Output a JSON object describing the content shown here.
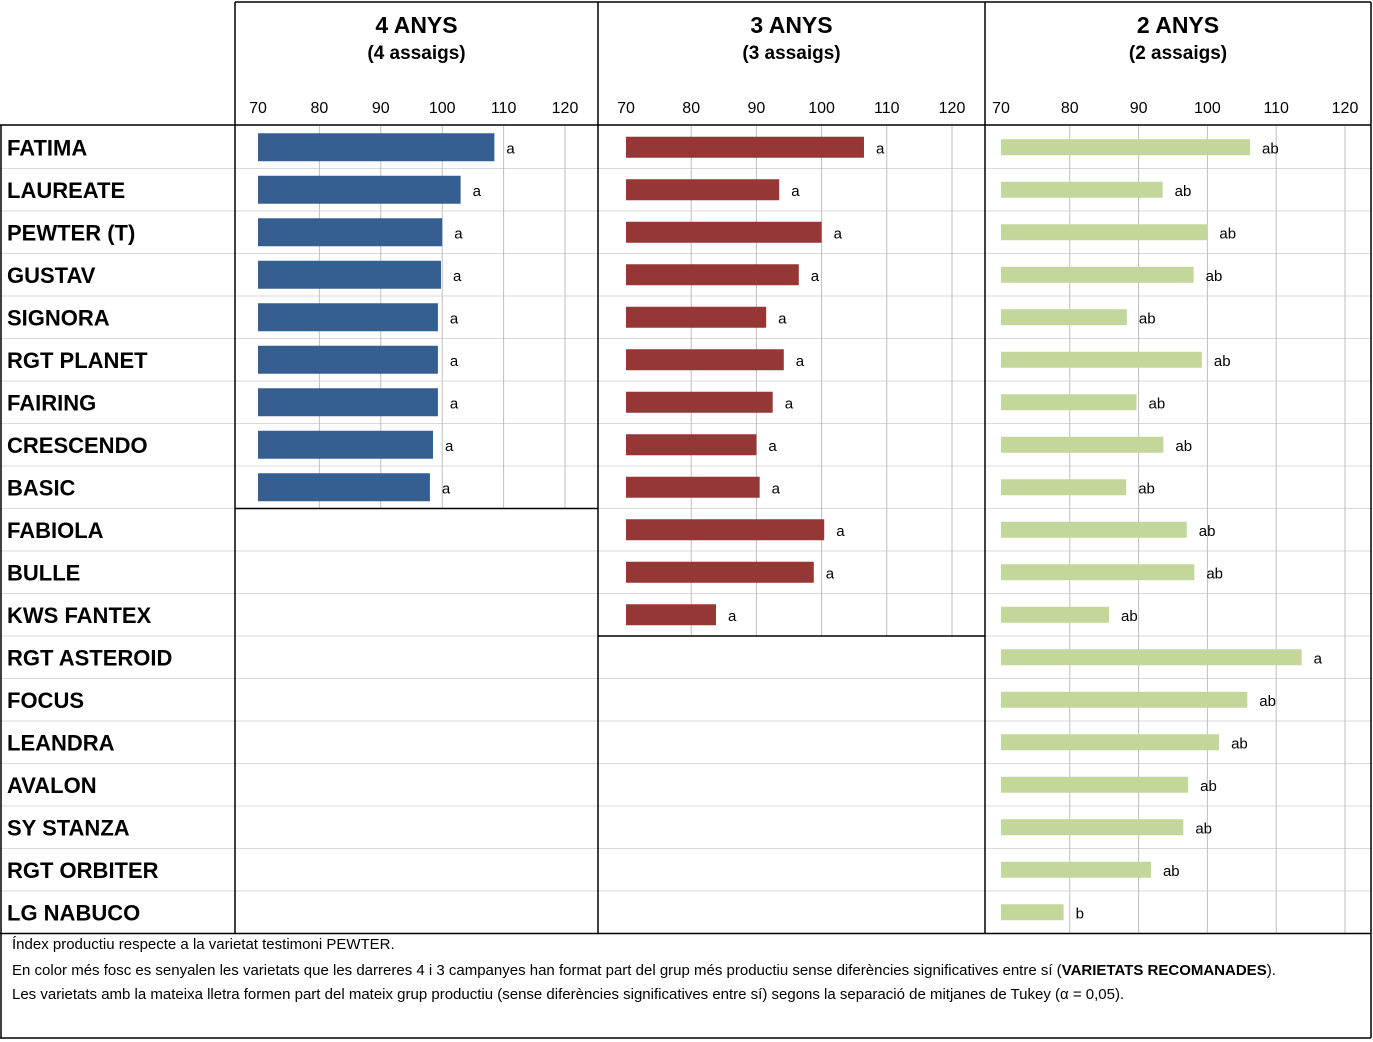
{
  "chart_data": {
    "type": "bar",
    "orientation": "horizontal",
    "categories": [
      "FATIMA",
      "LAUREATE",
      "PEWTER (T)",
      "GUSTAV",
      "SIGNORA",
      "RGT PLANET",
      "FAIRING",
      "CRESCENDO",
      "BASIC",
      "FABIOLA",
      "BULLE",
      "KWS FANTEX",
      "RGT ASTEROID",
      "FOCUS",
      "LEANDRA",
      "AVALON",
      "SY STANZA",
      "RGT ORBITER",
      "LG NABUCO"
    ],
    "xlim": [
      70,
      120
    ],
    "xticks": [
      70,
      80,
      90,
      100,
      110,
      120
    ],
    "grid": true,
    "panels": [
      {
        "title": "4 ANYS",
        "subtitle": "(4 assaigs)",
        "color": "#355F91",
        "values": [
          108.5,
          103,
          100,
          99.8,
          99.3,
          99.3,
          99.3,
          98.5,
          98
        ],
        "labels": [
          "a",
          "a",
          "a",
          "a",
          "a",
          "a",
          "a",
          "a",
          "a"
        ]
      },
      {
        "title": "3 ANYS",
        "subtitle": "(3 assaigs)",
        "color": "#953735",
        "values": [
          106.5,
          93.5,
          100,
          96.5,
          91.5,
          94.2,
          92.5,
          90,
          90.5,
          100.4,
          98.8,
          83.8
        ],
        "labels": [
          "a",
          "a",
          "a",
          "a",
          "a",
          "a",
          "a",
          "a",
          "a",
          "a",
          "a",
          "a"
        ]
      },
      {
        "title": "2 ANYS",
        "subtitle": "(2 assaigs)",
        "color": "#C4D79B",
        "values": [
          106.2,
          93.5,
          100,
          98,
          88.3,
          99.2,
          89.7,
          93.6,
          88.2,
          97,
          98.1,
          85.7,
          113.7,
          105.8,
          101.7,
          97.2,
          96.5,
          91.8,
          79.1
        ],
        "labels": [
          "ab",
          "ab",
          "ab",
          "ab",
          "ab",
          "ab",
          "ab",
          "ab",
          "ab",
          "ab",
          "ab",
          "ab",
          "a",
          "ab",
          "ab",
          "ab",
          "ab",
          "ab",
          "b"
        ]
      }
    ]
  },
  "notes": {
    "line1": "Índex productiu respecte a la varietat testimoni PEWTER.",
    "line2_pre": "En color més fosc es senyalen les varietats que les darreres 4 i 3 campanyes han format part del grup més productiu sense diferències significatives entre sí (",
    "line2_bold": "VARIETATS RECOMANADES",
    "line2_post": ").",
    "line3": "Les varietats amb la mateixa lletra formen part del mateix grup productiu (sense diferències significatives entre sí) segons la separació de mitjanes de Tukey (α = 0,05)."
  }
}
